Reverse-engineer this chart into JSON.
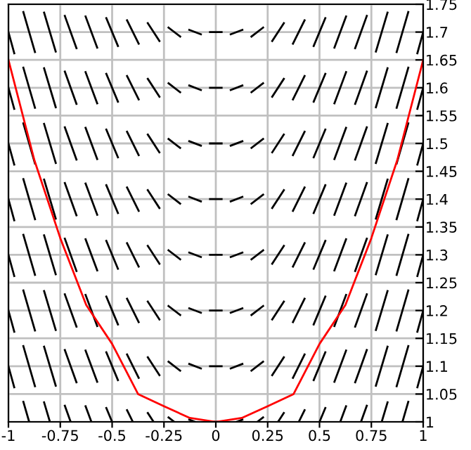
{
  "chart_data": {
    "type": "line",
    "xlim": [
      -1,
      1
    ],
    "ylim": [
      1,
      1.75
    ],
    "xticks": [
      -1,
      -0.75,
      -0.5,
      -0.25,
      0,
      0.25,
      0.5,
      0.75,
      1
    ],
    "yticks": [
      1,
      1.05,
      1.1,
      1.15,
      1.2,
      1.25,
      1.3,
      1.35,
      1.4,
      1.45,
      1.5,
      1.55,
      1.6,
      1.65,
      1.7,
      1.75
    ],
    "grid": true,
    "marker": "none",
    "line_style": "solid",
    "x": [
      -1,
      -0.972,
      null,
      -0.928,
      -0.872,
      null,
      -0.828,
      -0.772,
      null,
      -0.728,
      -0.672,
      null,
      -0.628,
      -0.572,
      null,
      -0.528,
      -0.472,
      null,
      -0.428,
      -0.372,
      null,
      -0.328,
      -0.272,
      null,
      -0.228,
      -0.172,
      null,
      -0.128,
      -0.072,
      null,
      -0.028,
      0.028,
      null,
      0.072,
      0.128,
      null,
      0.172,
      0.228,
      null,
      0.272,
      0.328,
      null,
      0.372,
      0.428,
      null,
      0.472,
      0.528,
      null,
      0.572,
      0.628,
      null,
      0.672,
      0.728,
      null,
      0.772,
      0.828,
      null,
      0.872,
      0.928,
      null,
      0.972,
      1,
      null
    ],
    "series": [
      {
        "color": "#000000",
        "values": [
          1.7,
          1.662,
          null,
          1.736,
          1.664,
          null,
          1.735,
          1.665,
          null,
          1.729,
          1.671,
          null,
          1.728,
          1.672,
          null,
          1.725,
          1.675,
          null,
          1.721,
          1.679,
          null,
          1.716,
          1.684,
          null,
          1.708,
          1.692,
          null,
          1.704,
          1.696,
          null,
          1.7,
          1.7,
          null,
          1.696,
          1.704,
          null,
          1.692,
          1.708,
          null,
          1.684,
          1.716,
          null,
          1.679,
          1.721,
          null,
          1.675,
          1.725,
          null,
          1.672,
          1.728,
          null,
          1.671,
          1.729,
          null,
          1.665,
          1.735,
          null,
          1.664,
          1.736,
          null,
          1.662,
          1.7,
          null
        ]
      },
      {
        "color": "#000000",
        "values": [
          1.6,
          1.562,
          null,
          1.636,
          1.564,
          null,
          1.635,
          1.565,
          null,
          1.629,
          1.571,
          null,
          1.628,
          1.572,
          null,
          1.625,
          1.575,
          null,
          1.621,
          1.579,
          null,
          1.616,
          1.584,
          null,
          1.608,
          1.592,
          null,
          1.604,
          1.596,
          null,
          1.6,
          1.6,
          null,
          1.596,
          1.604,
          null,
          1.592,
          1.608,
          null,
          1.584,
          1.616,
          null,
          1.579,
          1.621,
          null,
          1.575,
          1.625,
          null,
          1.572,
          1.628,
          null,
          1.571,
          1.629,
          null,
          1.565,
          1.635,
          null,
          1.564,
          1.636,
          null,
          1.562,
          1.6,
          null
        ]
      },
      {
        "color": "#000000",
        "values": [
          1.5,
          1.462,
          null,
          1.536,
          1.464,
          null,
          1.535,
          1.465,
          null,
          1.529,
          1.471,
          null,
          1.528,
          1.472,
          null,
          1.525,
          1.475,
          null,
          1.521,
          1.479,
          null,
          1.516,
          1.484,
          null,
          1.508,
          1.492,
          null,
          1.504,
          1.496,
          null,
          1.5,
          1.5,
          null,
          1.496,
          1.504,
          null,
          1.492,
          1.508,
          null,
          1.484,
          1.516,
          null,
          1.479,
          1.521,
          null,
          1.475,
          1.525,
          null,
          1.472,
          1.528,
          null,
          1.471,
          1.529,
          null,
          1.465,
          1.535,
          null,
          1.464,
          1.536,
          null,
          1.462,
          1.5,
          null
        ]
      },
      {
        "color": "#000000",
        "values": [
          1.4,
          1.362,
          null,
          1.436,
          1.364,
          null,
          1.435,
          1.365,
          null,
          1.429,
          1.371,
          null,
          1.428,
          1.372,
          null,
          1.425,
          1.375,
          null,
          1.421,
          1.379,
          null,
          1.416,
          1.384,
          null,
          1.408,
          1.392,
          null,
          1.404,
          1.396,
          null,
          1.4,
          1.4,
          null,
          1.396,
          1.404,
          null,
          1.392,
          1.408,
          null,
          1.384,
          1.416,
          null,
          1.379,
          1.421,
          null,
          1.375,
          1.425,
          null,
          1.372,
          1.428,
          null,
          1.371,
          1.429,
          null,
          1.365,
          1.435,
          null,
          1.364,
          1.436,
          null,
          1.362,
          1.4,
          null
        ]
      },
      {
        "color": "#000000",
        "values": [
          1.3,
          1.262,
          null,
          1.336,
          1.264,
          null,
          1.335,
          1.265,
          null,
          1.329,
          1.271,
          null,
          1.328,
          1.272,
          null,
          1.325,
          1.275,
          null,
          1.321,
          1.279,
          null,
          1.316,
          1.284,
          null,
          1.308,
          1.292,
          null,
          1.304,
          1.296,
          null,
          1.3,
          1.3,
          null,
          1.296,
          1.304,
          null,
          1.292,
          1.308,
          null,
          1.284,
          1.316,
          null,
          1.279,
          1.321,
          null,
          1.275,
          1.325,
          null,
          1.272,
          1.328,
          null,
          1.271,
          1.329,
          null,
          1.265,
          1.335,
          null,
          1.264,
          1.336,
          null,
          1.262,
          1.3,
          null
        ]
      },
      {
        "color": "#000000",
        "values": [
          1.2,
          1.162,
          null,
          1.236,
          1.164,
          null,
          1.235,
          1.165,
          null,
          1.229,
          1.171,
          null,
          1.228,
          1.172,
          null,
          1.225,
          1.175,
          null,
          1.221,
          1.179,
          null,
          1.216,
          1.184,
          null,
          1.208,
          1.192,
          null,
          1.204,
          1.196,
          null,
          1.2,
          1.2,
          null,
          1.196,
          1.204,
          null,
          1.192,
          1.208,
          null,
          1.184,
          1.216,
          null,
          1.179,
          1.221,
          null,
          1.175,
          1.225,
          null,
          1.172,
          1.228,
          null,
          1.171,
          1.229,
          null,
          1.165,
          1.235,
          null,
          1.164,
          1.236,
          null,
          1.162,
          1.2,
          null
        ]
      },
      {
        "color": "#000000",
        "values": [
          1.1,
          1.062,
          null,
          1.136,
          1.064,
          null,
          1.135,
          1.065,
          null,
          1.129,
          1.071,
          null,
          1.128,
          1.072,
          null,
          1.125,
          1.075,
          null,
          1.121,
          1.079,
          null,
          1.116,
          1.084,
          null,
          1.108,
          1.092,
          null,
          1.104,
          1.096,
          null,
          1.1,
          1.1,
          null,
          1.096,
          1.104,
          null,
          1.092,
          1.108,
          null,
          1.084,
          1.116,
          null,
          1.079,
          1.121,
          null,
          1.075,
          1.125,
          null,
          1.072,
          1.128,
          null,
          1.071,
          1.129,
          null,
          1.065,
          1.135,
          null,
          1.064,
          1.136,
          null,
          1.062,
          1.1,
          null
        ]
      },
      {
        "color": "#000000",
        "x": [
          -0.928,
          -0.9,
          null,
          -0.828,
          -0.8,
          null,
          -0.728,
          -0.7,
          null,
          -0.628,
          -0.6,
          null,
          -0.528,
          -0.5,
          null,
          -0.428,
          -0.4,
          null,
          -0.328,
          -0.3,
          null,
          -0.228,
          -0.2,
          null,
          -0.128,
          -0.1,
          null,
          -0.028,
          0.028,
          null,
          0.1,
          0.128,
          null,
          0.2,
          0.228,
          null,
          0.3,
          0.328,
          null,
          0.4,
          0.428,
          null,
          0.5,
          0.528,
          null,
          0.6,
          0.628,
          null,
          0.7,
          0.728,
          null,
          0.8,
          0.828,
          null,
          0.9,
          0.928,
          null
        ],
        "values": [
          1.036,
          1,
          null,
          1.035,
          1,
          null,
          1.029,
          1,
          null,
          1.028,
          1,
          null,
          1.025,
          1,
          null,
          1.021,
          1,
          null,
          1.016,
          1,
          null,
          1.008,
          1,
          null,
          1.004,
          1,
          null,
          1,
          1,
          null,
          1,
          1.004,
          null,
          1,
          1.008,
          null,
          1,
          1.016,
          null,
          1,
          1.021,
          null,
          1,
          1.025,
          null,
          1,
          1.028,
          null,
          1,
          1.029,
          null,
          1,
          1.035,
          null,
          1,
          1.036,
          null
        ]
      },
      {
        "color": "#ff0000",
        "x": [
          -1,
          -0.875,
          -0.75,
          -0.625,
          -0.5,
          -0.375,
          -0.25,
          -0.125,
          0,
          0.125,
          0.25,
          0.375,
          0.5,
          0.625,
          0.75,
          0.875,
          1
        ],
        "values": [
          1.65,
          1.47,
          1.33,
          1.21,
          1.14,
          1.05,
          1.028,
          1.007,
          1,
          1.007,
          1.028,
          1.05,
          1.14,
          1.21,
          1.33,
          1.47,
          1.65
        ]
      }
    ]
  }
}
